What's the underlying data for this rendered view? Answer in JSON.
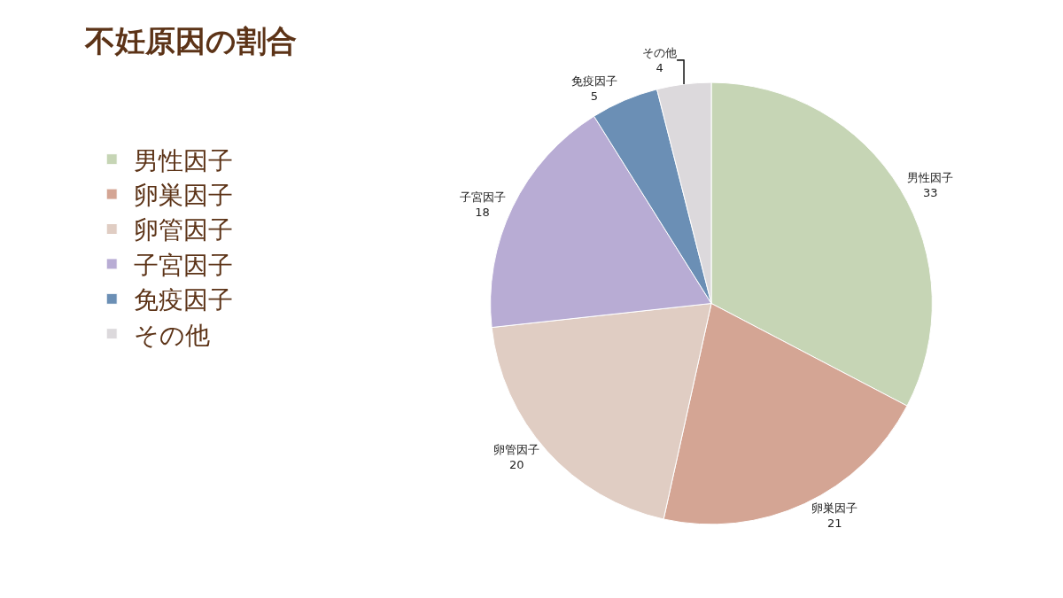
{
  "chart_data": {
    "type": "pie",
    "title": "不妊原因の割合",
    "categories": [
      "男性因子",
      "卵巣因子",
      "卵管因子",
      "子宮因子",
      "免疫因子",
      "その他"
    ],
    "values": [
      33,
      21,
      20,
      18,
      5,
      4
    ],
    "colors": [
      "#c6d5b5",
      "#d4a594",
      "#e0cdc3",
      "#b8acd4",
      "#6b8fb5",
      "#dcd9dc"
    ],
    "data_labels": true,
    "legend": "left"
  }
}
